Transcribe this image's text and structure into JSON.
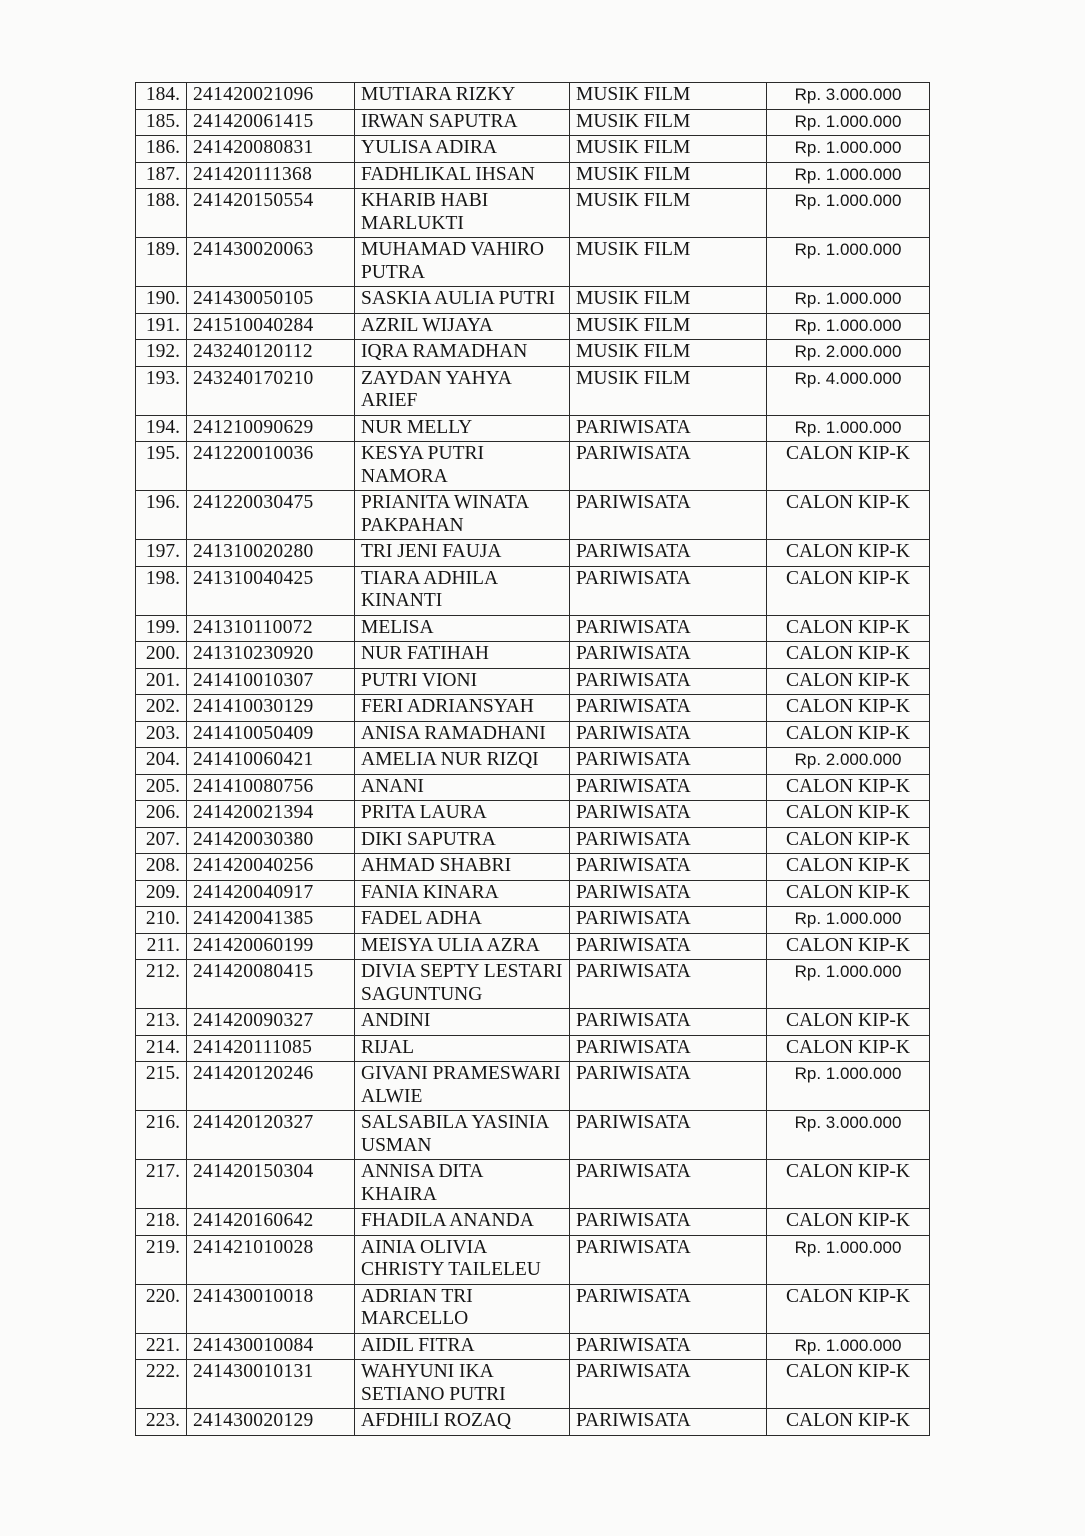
{
  "table": {
    "rows": [
      {
        "no": "184.",
        "nim": "241420021096",
        "name": "MUTIARA RIZKY",
        "prodi": "MUSIK FILM",
        "amount": "Rp. 3.000.000"
      },
      {
        "no": "185.",
        "nim": "241420061415",
        "name": "IRWAN SAPUTRA",
        "prodi": "MUSIK FILM",
        "amount": "Rp. 1.000.000"
      },
      {
        "no": "186.",
        "nim": "241420080831",
        "name": "YULISA ADIRA",
        "prodi": "MUSIK FILM",
        "amount": "Rp. 1.000.000"
      },
      {
        "no": "187.",
        "nim": "241420111368",
        "name": "FADHLIKAL IHSAN",
        "prodi": "MUSIK FILM",
        "amount": "Rp. 1.000.000"
      },
      {
        "no": "188.",
        "nim": "241420150554",
        "name": "KHARIB HABI MARLUKTI",
        "prodi": "MUSIK FILM",
        "amount": "Rp. 1.000.000"
      },
      {
        "no": "189.",
        "nim": "241430020063",
        "name": "MUHAMAD VAHIRO PUTRA",
        "prodi": "MUSIK FILM",
        "amount": "Rp. 1.000.000"
      },
      {
        "no": "190.",
        "nim": "241430050105",
        "name": "SASKIA AULIA PUTRI",
        "prodi": "MUSIK FILM",
        "amount": "Rp. 1.000.000"
      },
      {
        "no": "191.",
        "nim": "241510040284",
        "name": "AZRIL WIJAYA",
        "prodi": "MUSIK FILM",
        "amount": "Rp. 1.000.000"
      },
      {
        "no": "192.",
        "nim": "243240120112",
        "name": "IQRA RAMADHAN",
        "prodi": "MUSIK FILM",
        "amount": "Rp. 2.000.000"
      },
      {
        "no": "193.",
        "nim": "243240170210",
        "name": "ZAYDAN YAHYA ARIEF",
        "prodi": "MUSIK FILM",
        "amount": "Rp. 4.000.000"
      },
      {
        "no": "194.",
        "nim": "241210090629",
        "name": "NUR MELLY",
        "prodi": "PARIWISATA",
        "amount": "Rp. 1.000.000"
      },
      {
        "no": "195.",
        "nim": "241220010036",
        "name": "KESYA PUTRI NAMORA",
        "prodi": "PARIWISATA",
        "amount": "CALON KIP-K"
      },
      {
        "no": "196.",
        "nim": "241220030475",
        "name": "PRIANITA WINATA PAKPAHAN",
        "prodi": "PARIWISATA",
        "amount": "CALON KIP-K"
      },
      {
        "no": "197.",
        "nim": "241310020280",
        "name": "TRI JENI FAUJA",
        "prodi": "PARIWISATA",
        "amount": "CALON KIP-K"
      },
      {
        "no": "198.",
        "nim": "241310040425",
        "name": "TIARA ADHILA KINANTI",
        "prodi": "PARIWISATA",
        "amount": "CALON KIP-K"
      },
      {
        "no": "199.",
        "nim": "241310110072",
        "name": "MELISA",
        "prodi": "PARIWISATA",
        "amount": "CALON KIP-K"
      },
      {
        "no": "200.",
        "nim": "241310230920",
        "name": "NUR FATIHAH",
        "prodi": "PARIWISATA",
        "amount": "CALON KIP-K"
      },
      {
        "no": "201.",
        "nim": "241410010307",
        "name": "PUTRI VIONI",
        "prodi": "PARIWISATA",
        "amount": "CALON KIP-K"
      },
      {
        "no": "202.",
        "nim": "241410030129",
        "name": "FERI ADRIANSYAH",
        "prodi": "PARIWISATA",
        "amount": "CALON KIP-K"
      },
      {
        "no": "203.",
        "nim": "241410050409",
        "name": "ANISA RAMADHANI",
        "prodi": "PARIWISATA",
        "amount": "CALON KIP-K"
      },
      {
        "no": "204.",
        "nim": "241410060421",
        "name": "AMELIA NUR RIZQI",
        "prodi": "PARIWISATA",
        "amount": "Rp. 2.000.000"
      },
      {
        "no": "205.",
        "nim": "241410080756",
        "name": "ANANI",
        "prodi": "PARIWISATA",
        "amount": "CALON KIP-K"
      },
      {
        "no": "206.",
        "nim": "241420021394",
        "name": "PRITA LAURA",
        "prodi": "PARIWISATA",
        "amount": "CALON KIP-K"
      },
      {
        "no": "207.",
        "nim": "241420030380",
        "name": "DIKI SAPUTRA",
        "prodi": "PARIWISATA",
        "amount": "CALON KIP-K"
      },
      {
        "no": "208.",
        "nim": "241420040256",
        "name": "AHMAD SHABRI",
        "prodi": "PARIWISATA",
        "amount": "CALON KIP-K"
      },
      {
        "no": "209.",
        "nim": "241420040917",
        "name": "FANIA KINARA",
        "prodi": "PARIWISATA",
        "amount": "CALON KIP-K"
      },
      {
        "no": "210.",
        "nim": "241420041385",
        "name": "FADEL ADHA",
        "prodi": "PARIWISATA",
        "amount": "Rp. 1.000.000"
      },
      {
        "no": "211.",
        "nim": "241420060199",
        "name": "MEISYA ULIA AZRA",
        "prodi": "PARIWISATA",
        "amount": "CALON KIP-K"
      },
      {
        "no": "212.",
        "nim": "241420080415",
        "name": "DIVIA SEPTY LESTARI SAGUNTUNG",
        "prodi": "PARIWISATA",
        "amount": "Rp. 1.000.000"
      },
      {
        "no": "213.",
        "nim": "241420090327",
        "name": "ANDINI",
        "prodi": "PARIWISATA",
        "amount": "CALON KIP-K"
      },
      {
        "no": "214.",
        "nim": "241420111085",
        "name": "RIJAL",
        "prodi": "PARIWISATA",
        "amount": "CALON KIP-K"
      },
      {
        "no": "215.",
        "nim": "241420120246",
        "name": "GIVANI PRAMESWARI ALWIE",
        "prodi": "PARIWISATA",
        "amount": "Rp. 1.000.000"
      },
      {
        "no": "216.",
        "nim": "241420120327",
        "name": "SALSABILA YASINIA USMAN",
        "prodi": "PARIWISATA",
        "amount": "Rp. 3.000.000"
      },
      {
        "no": "217.",
        "nim": "241420150304",
        "name": "ANNISA DITA KHAIRA",
        "prodi": "PARIWISATA",
        "amount": "CALON KIP-K"
      },
      {
        "no": "218.",
        "nim": "241420160642",
        "name": "FHADILA ANANDA",
        "prodi": "PARIWISATA",
        "amount": "CALON KIP-K"
      },
      {
        "no": "219.",
        "nim": "241421010028",
        "name": "AINIA OLIVIA CHRISTY TAILELEU",
        "prodi": "PARIWISATA",
        "amount": "Rp. 1.000.000"
      },
      {
        "no": "220.",
        "nim": "241430010018",
        "name": "ADRIAN TRI MARCELLO",
        "prodi": "PARIWISATA",
        "amount": "CALON KIP-K"
      },
      {
        "no": "221.",
        "nim": "241430010084",
        "name": "AIDIL FITRA",
        "prodi": "PARIWISATA",
        "amount": "Rp. 1.000.000"
      },
      {
        "no": "222.",
        "nim": "241430010131",
        "name": "WAHYUNI IKA SETIANO PUTRI",
        "prodi": "PARIWISATA",
        "amount": "CALON KIP-K"
      },
      {
        "no": "223.",
        "nim": "241430020129",
        "name": "AFDHILI ROZAQ",
        "prodi": "PARIWISATA",
        "amount": "CALON KIP-K"
      }
    ]
  }
}
